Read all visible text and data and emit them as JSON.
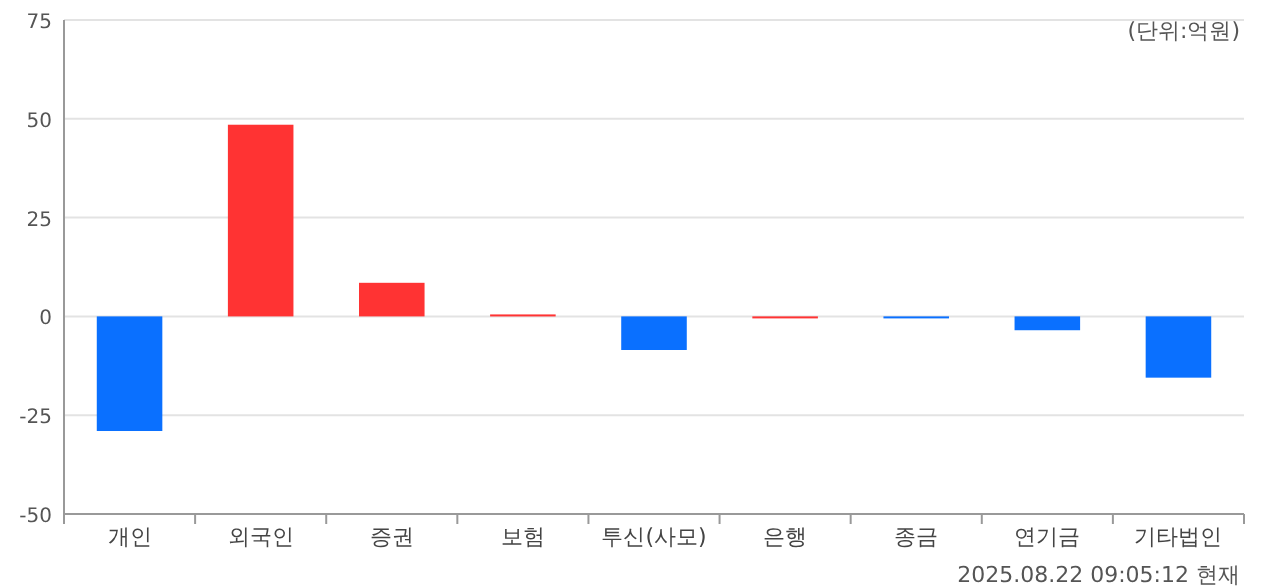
{
  "chart_data": {
    "type": "bar",
    "categories": [
      "개인",
      "외국인",
      "증권",
      "보험",
      "투신(사모)",
      "은행",
      "종금",
      "연기금",
      "기타법인"
    ],
    "values": [
      -29,
      48.5,
      8.5,
      0.5,
      -8.5,
      0,
      -0.5,
      -3.5,
      -15.5
    ],
    "colors": [
      "#0a70ff",
      "#ff3333",
      "#ff3333",
      "#ff3333",
      "#0a70ff",
      "#ff3333",
      "#0a70ff",
      "#0a70ff",
      "#0a70ff"
    ],
    "ylim": [
      -50,
      75
    ],
    "yticks": [
      -50,
      -25,
      0,
      25,
      50,
      75
    ],
    "grid": "y",
    "annotations": [
      "(단위:억원)",
      "2025.08.22 09:05:12 현재"
    ]
  }
}
